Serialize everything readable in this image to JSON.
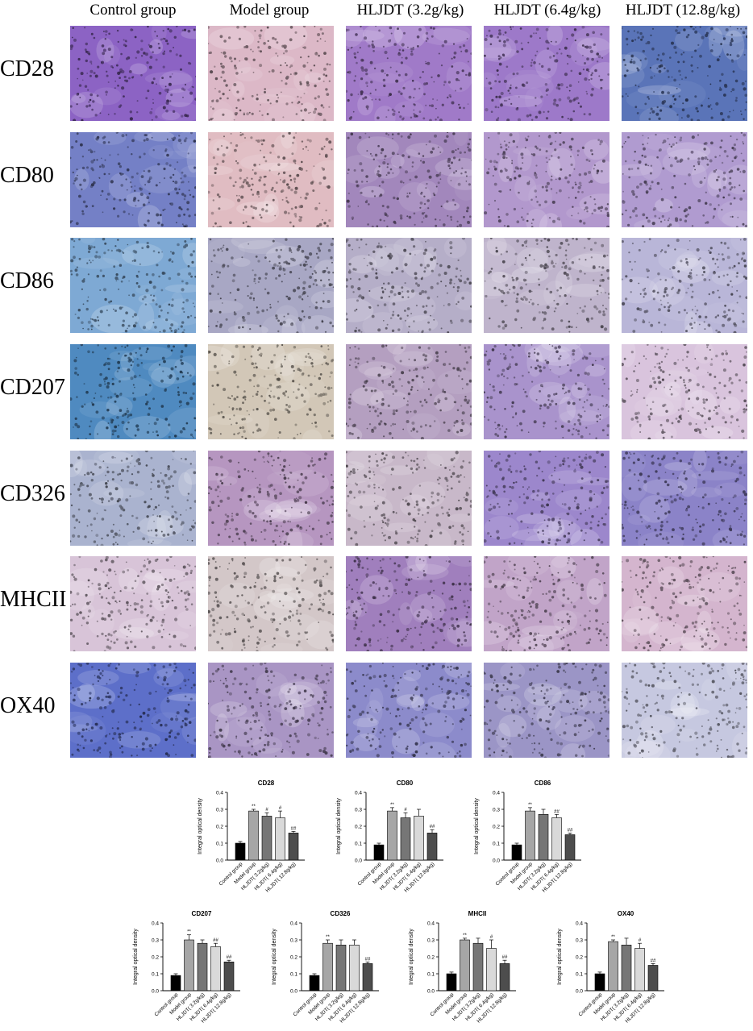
{
  "figure": {
    "column_headers": [
      "Control group",
      "Model group",
      "HLJDT (3.2g/kg)",
      "HLJDT (6.4g/kg)",
      "HLJDT (12.8g/kg)"
    ],
    "row_labels": [
      "CD28",
      "CD80",
      "CD86",
      "CD207",
      "CD326",
      "MHCII",
      "OX40"
    ],
    "panel_tints": [
      [
        "#8c63c4",
        "#dcb8c7",
        "#a07ac8",
        "#9d79c9",
        "#5a74b8"
      ],
      [
        "#7480c6",
        "#e0bcc2",
        "#a287bc",
        "#b298cd",
        "#b09bd0"
      ],
      [
        "#7ea9d4",
        "#a8a7c4",
        "#b5aec8",
        "#bfb4cc",
        "#b9b6d8"
      ],
      [
        "#4f8ac0",
        "#d2c7b7",
        "#b49fc0",
        "#a993cc",
        "#d9c4dd"
      ],
      [
        "#aab3cf",
        "#b696c0",
        "#c8b8c9",
        "#9c87cc",
        "#8b83c8"
      ],
      [
        "#d8c4d8",
        "#d3c7c8",
        "#a07fbd",
        "#c1a4c8",
        "#d4b5ce"
      ],
      [
        "#5d6fc9",
        "#a995c4",
        "#8c8bcb",
        "#9b95c6",
        "#c6c8e0"
      ]
    ]
  },
  "chart_data": [
    {
      "type": "bar",
      "title": "CD28",
      "ylabel": "Integral optical density",
      "categories": [
        "Control group",
        "Model group",
        "HLJDT( 3.2g/kg)",
        "HLJDT( 6.4g/kg)",
        "HLJDT( 12.8g/kg)"
      ],
      "values": [
        0.1,
        0.29,
        0.26,
        0.25,
        0.16
      ],
      "errors": [
        0.01,
        0.01,
        0.02,
        0.04,
        0.01
      ],
      "annotations": [
        "",
        "**",
        "#",
        "#",
        "##"
      ],
      "ylim": [
        0,
        0.4
      ],
      "yticks": [
        "0.0",
        "0.1",
        "0.2",
        "0.3",
        "0.4"
      ],
      "bar_colors": [
        "#000000",
        "#a6a6a6",
        "#767676",
        "#d9d9d9",
        "#4d4d4d"
      ]
    },
    {
      "type": "bar",
      "title": "CD80",
      "ylabel": "Integral optical density",
      "categories": [
        "Control group",
        "Model group",
        "HLJDT( 3.2g/kg)",
        "HLJDT( 6.4g/kg)",
        "HLJDT( 12.8g/kg)"
      ],
      "values": [
        0.09,
        0.29,
        0.25,
        0.26,
        0.16
      ],
      "errors": [
        0.01,
        0.02,
        0.03,
        0.04,
        0.02
      ],
      "annotations": [
        "",
        "**",
        "#",
        "",
        "##"
      ],
      "ylim": [
        0,
        0.4
      ],
      "yticks": [
        "0.0",
        "0.1",
        "0.2",
        "0.3",
        "0.4"
      ],
      "bar_colors": [
        "#000000",
        "#a6a6a6",
        "#767676",
        "#d9d9d9",
        "#4d4d4d"
      ]
    },
    {
      "type": "bar",
      "title": "CD86",
      "ylabel": "Integral optical density",
      "categories": [
        "Control group",
        "Model group",
        "HLJDT( 3.2g/kg)",
        "HLJDT( 6.4g/kg)",
        "HLJDT( 12.8g/kg)"
      ],
      "values": [
        0.09,
        0.29,
        0.27,
        0.25,
        0.15
      ],
      "errors": [
        0.01,
        0.02,
        0.03,
        0.02,
        0.01
      ],
      "annotations": [
        "",
        "**",
        "",
        "##",
        "##"
      ],
      "ylim": [
        0,
        0.4
      ],
      "yticks": [
        "0.0",
        "0.1",
        "0.2",
        "0.3",
        "0.4"
      ],
      "bar_colors": [
        "#000000",
        "#a6a6a6",
        "#767676",
        "#d9d9d9",
        "#4d4d4d"
      ]
    },
    {
      "type": "bar",
      "title": "CD207",
      "ylabel": "Integral optical density",
      "categories": [
        "Control group",
        "Model group",
        "HLJDT( 3.2g/kg)",
        "HLJDT( 6.4g/kg)",
        "HLJDT( 12.8g/kg)"
      ],
      "values": [
        0.09,
        0.3,
        0.28,
        0.26,
        0.17
      ],
      "errors": [
        0.01,
        0.03,
        0.02,
        0.02,
        0.01
      ],
      "annotations": [
        "",
        "**",
        "",
        "##",
        "##"
      ],
      "ylim": [
        0,
        0.4
      ],
      "yticks": [
        "0.0",
        "0.1",
        "0.2",
        "0.3",
        "0.4"
      ],
      "bar_colors": [
        "#000000",
        "#a6a6a6",
        "#767676",
        "#d9d9d9",
        "#4d4d4d"
      ]
    },
    {
      "type": "bar",
      "title": "CD326",
      "ylabel": "Integral optical density",
      "categories": [
        "Control group",
        "Model group",
        "HLJDT( 3.2g/kg)",
        "HLJDT( 6.4g/kg)",
        "HLJDT( 12.8g/kg)"
      ],
      "values": [
        0.09,
        0.28,
        0.27,
        0.27,
        0.16
      ],
      "errors": [
        0.01,
        0.02,
        0.03,
        0.03,
        0.01
      ],
      "annotations": [
        "",
        "**",
        "",
        "",
        "##"
      ],
      "ylim": [
        0,
        0.4
      ],
      "yticks": [
        "0.0",
        "0.1",
        "0.2",
        "0.3",
        "0.4"
      ],
      "bar_colors": [
        "#000000",
        "#a6a6a6",
        "#767676",
        "#d9d9d9",
        "#4d4d4d"
      ]
    },
    {
      "type": "bar",
      "title": "MHCII",
      "ylabel": "Integral optical density",
      "categories": [
        "Control group",
        "Model group",
        "HLJDT( 3.2g/kg)",
        "HLJDT( 6.4g/kg)",
        "HLJDT( 12.8g/kg)"
      ],
      "values": [
        0.1,
        0.3,
        0.28,
        0.25,
        0.16
      ],
      "errors": [
        0.01,
        0.01,
        0.03,
        0.05,
        0.02
      ],
      "annotations": [
        "",
        "**",
        "",
        "#",
        "##"
      ],
      "ylim": [
        0,
        0.4
      ],
      "yticks": [
        "0.0",
        "0.1",
        "0.2",
        "0.3",
        "0.4"
      ],
      "bar_colors": [
        "#000000",
        "#a6a6a6",
        "#767676",
        "#d9d9d9",
        "#4d4d4d"
      ]
    },
    {
      "type": "bar",
      "title": "OX40",
      "ylabel": "Integral optical density",
      "categories": [
        "Control group",
        "Model group",
        "HLJDT( 3.2g/kg)",
        "HLJDT( 6.4g/kg)",
        "HLJDT( 12.8g/kg)"
      ],
      "values": [
        0.1,
        0.29,
        0.27,
        0.25,
        0.15
      ],
      "errors": [
        0.01,
        0.01,
        0.04,
        0.03,
        0.01
      ],
      "annotations": [
        "",
        "**",
        "",
        "#",
        "##"
      ],
      "ylim": [
        0,
        0.4
      ],
      "yticks": [
        "0.0",
        "0.1",
        "0.2",
        "0.3",
        "0.4"
      ],
      "bar_colors": [
        "#000000",
        "#a6a6a6",
        "#767676",
        "#d9d9d9",
        "#4d4d4d"
      ]
    }
  ]
}
